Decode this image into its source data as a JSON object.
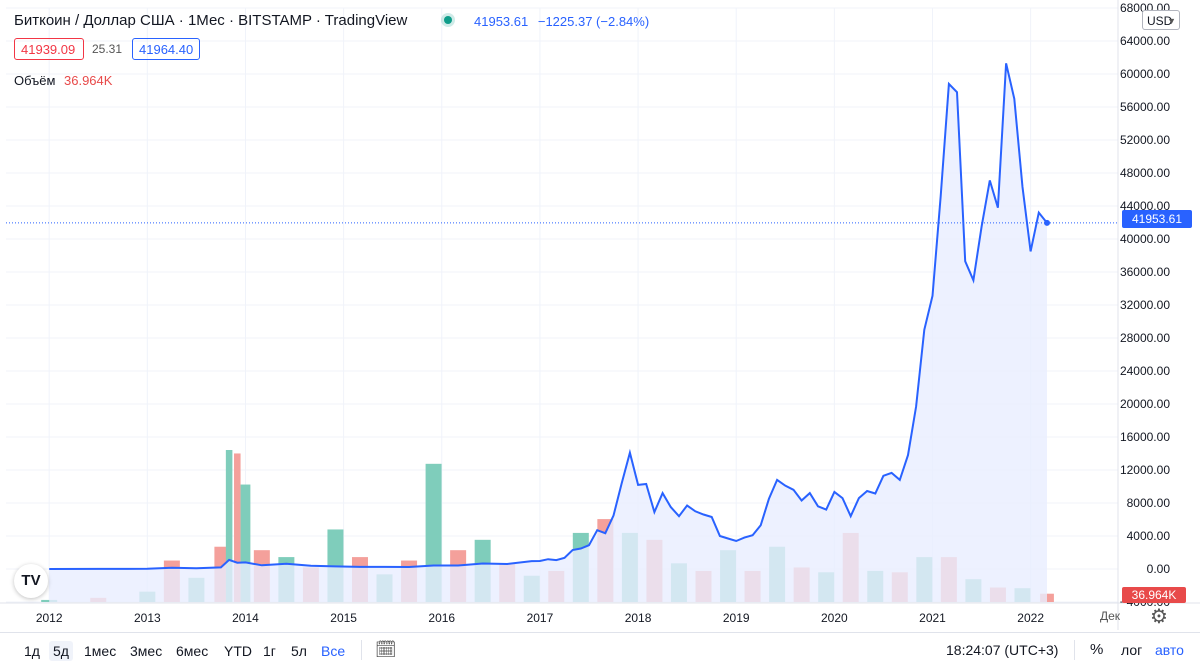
{
  "header": {
    "title": "Биткоин / Доллар США · 1Мес · BITSTAMP · TradingView",
    "last_price": "41953.61",
    "change": "−1225.37 (−2.84%)",
    "sell_price": "41939.09",
    "spread": "25.31",
    "buy_price": "41964.40",
    "volume_label": "Объём",
    "volume_value": "36.964K"
  },
  "currency_select": "USD",
  "price_tag": "41953.61",
  "volume_tag": "36.964K",
  "axis_month_label": "Дек",
  "toolbar": {
    "ranges": [
      "1д",
      "5д",
      "1мес",
      "3мес",
      "6мес",
      "YTD",
      "1г",
      "5л",
      "Все"
    ],
    "selected": "Все",
    "clock": "18:24:07 (UTC+3)",
    "percent": "%",
    "log": "лог",
    "auto": "авто"
  },
  "icons": [
    "tradingview-logo-icon",
    "calendar-range-icon",
    "settings-gear-icon",
    "chevron-down-icon"
  ],
  "colors": {
    "line": "#2962ff",
    "area": "#e8eeff",
    "volume_up": "#7fcdbb",
    "volume_down": "#f4a09b",
    "sell": "#f23645",
    "buy": "#2962ff"
  },
  "chart_data": {
    "type": "area",
    "series": [
      {
        "name": "Биткоин / Доллар США",
        "x": [
          "2012-01",
          "2012-07",
          "2013-01",
          "2013-04",
          "2013-07",
          "2013-10",
          "2013-11",
          "2013-12",
          "2014-01",
          "2014-03",
          "2014-06",
          "2014-09",
          "2014-12",
          "2015-03",
          "2015-06",
          "2015-09",
          "2015-12",
          "2016-03",
          "2016-06",
          "2016-09",
          "2016-12",
          "2017-01",
          "2017-02",
          "2017-03",
          "2017-04",
          "2017-05",
          "2017-06",
          "2017-07",
          "2017-08",
          "2017-09",
          "2017-10",
          "2017-11",
          "2017-12",
          "2018-01",
          "2018-02",
          "2018-03",
          "2018-04",
          "2018-05",
          "2018-06",
          "2018-07",
          "2018-08",
          "2018-09",
          "2018-10",
          "2018-11",
          "2018-12",
          "2019-01",
          "2019-02",
          "2019-03",
          "2019-04",
          "2019-05",
          "2019-06",
          "2019-07",
          "2019-08",
          "2019-09",
          "2019-10",
          "2019-11",
          "2019-12",
          "2020-01",
          "2020-02",
          "2020-03",
          "2020-04",
          "2020-05",
          "2020-06",
          "2020-07",
          "2020-08",
          "2020-09",
          "2020-10",
          "2020-11",
          "2020-12",
          "2021-01",
          "2021-02",
          "2021-03",
          "2021-04",
          "2021-05",
          "2021-06",
          "2021-07",
          "2021-08",
          "2021-09",
          "2021-10",
          "2021-11",
          "2021-12",
          "2022-01",
          "2022-02",
          "2022-03"
        ],
        "values": [
          5,
          7,
          20,
          140,
          100,
          200,
          1100,
          760,
          800,
          450,
          640,
          390,
          320,
          250,
          260,
          240,
          430,
          420,
          670,
          610,
          960,
          970,
          1190,
          1080,
          1350,
          2300,
          2480,
          2880,
          4700,
          4340,
          6470,
          10400,
          14100,
          10200,
          10300,
          6900,
          9200,
          7500,
          6400,
          7700,
          7000,
          6600,
          6300,
          4000,
          3700,
          3400,
          3800,
          4100,
          5300,
          8500,
          10800,
          10100,
          9600,
          8300,
          9200,
          7600,
          7200,
          9350,
          8600,
          6400,
          8600,
          9450,
          9150,
          11300,
          11650,
          10800,
          13800,
          19700,
          29000,
          33100,
          45200,
          58800,
          57800,
          37300,
          35000,
          41500,
          47100,
          43800,
          61300,
          57000,
          46300,
          38500,
          43200,
          41953
        ]
      }
    ],
    "volume": {
      "x": [
        "2012-01",
        "2012-07",
        "2013-01",
        "2013-04",
        "2013-07",
        "2013-10",
        "2013-11",
        "2013-12",
        "2014-01",
        "2014-03",
        "2014-06",
        "2014-09",
        "2014-12",
        "2015-03",
        "2015-06",
        "2015-09",
        "2015-12",
        "2016-03",
        "2016-06",
        "2016-09",
        "2016-12",
        "2017-03",
        "2017-06",
        "2017-09",
        "2017-12",
        "2018-03",
        "2018-06",
        "2018-09",
        "2018-12",
        "2019-03",
        "2019-06",
        "2019-09",
        "2019-12",
        "2020-03",
        "2020-06",
        "2020-09",
        "2020-12",
        "2021-03",
        "2021-06",
        "2021-09",
        "2021-12",
        "2022-03"
      ],
      "values": [
        0.3,
        0.6,
        1.5,
        6.0,
        3.5,
        8.0,
        22.0,
        21.5,
        17.0,
        7.5,
        6.5,
        5.0,
        10.5,
        6.5,
        4.0,
        6.0,
        20.0,
        7.5,
        9.0,
        5.5,
        3.8,
        4.5,
        10.0,
        12.0,
        10.0,
        9.0,
        5.6,
        4.5,
        7.5,
        4.5,
        8.0,
        5.0,
        4.3,
        10.0,
        4.5,
        4.3,
        6.5,
        6.5,
        3.3,
        2.1,
        2.0,
        1.2
      ]
    },
    "ylim": [
      -4000,
      68000
    ],
    "y_ticks": [
      "68000.00",
      "64000.00",
      "60000.00",
      "56000.00",
      "52000.00",
      "48000.00",
      "44000.00",
      "40000.00",
      "36000.00",
      "32000.00",
      "28000.00",
      "24000.00",
      "20000.00",
      "16000.00",
      "12000.00",
      "8000.00",
      "4000.00",
      "0.00",
      "−4000.00"
    ],
    "x_ticks": [
      "2012",
      "2013",
      "2014",
      "2015",
      "2016",
      "2017",
      "2018",
      "2019",
      "2020",
      "2021",
      "2022"
    ],
    "grid": true
  }
}
